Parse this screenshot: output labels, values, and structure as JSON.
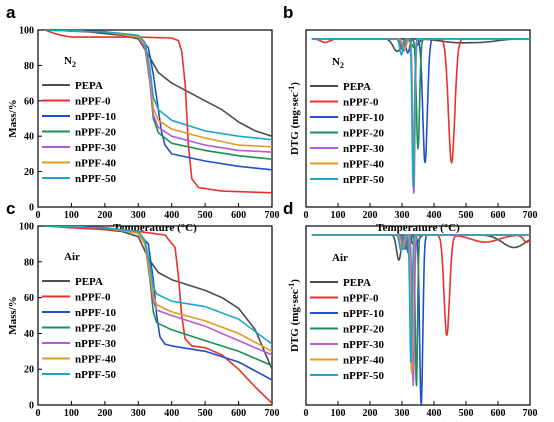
{
  "colors": {
    "PEPA": "#4d4d4d",
    "nPPF-0": "#e8312c",
    "nPPF-10": "#1f4fc9",
    "nPPF-20": "#1a8f4e",
    "nPPF-30": "#b65ad6",
    "nPPF-40": "#e09a1c",
    "nPPF-50": "#1ea6c6"
  },
  "chart_data": [
    {
      "panel": "a",
      "type": "line",
      "atmosphere_label": "N2",
      "xlabel": "Temperature (°C)",
      "ylabel": "Mass/%",
      "xlim": [
        0,
        700
      ],
      "ylim": [
        0,
        100
      ],
      "xticks": [
        0,
        100,
        200,
        300,
        400,
        500,
        600,
        700
      ],
      "yticks": [
        0,
        20,
        40,
        60,
        80,
        100
      ],
      "legend_position": "left-center",
      "series": [
        {
          "name": "PEPA",
          "x": [
            20,
            150,
            250,
            300,
            330,
            360,
            400,
            500,
            550,
            600,
            650,
            700
          ],
          "y": [
            100,
            99,
            97,
            95,
            86,
            76,
            70,
            60,
            55,
            48,
            43,
            40
          ]
        },
        {
          "name": "nPPF-0",
          "x": [
            20,
            50,
            70,
            100,
            200,
            300,
            400,
            420,
            430,
            440,
            450,
            460,
            480,
            550,
            700
          ],
          "y": [
            100,
            98,
            97,
            96,
            96,
            96,
            95.5,
            94,
            88,
            70,
            35,
            16,
            11,
            9,
            8
          ]
        },
        {
          "name": "nPPF-10",
          "x": [
            20,
            200,
            300,
            330,
            345,
            360,
            370,
            380,
            400,
            500,
            600,
            700
          ],
          "y": [
            100,
            99,
            96,
            90,
            75,
            55,
            42,
            35,
            30,
            26,
            23,
            21
          ]
        },
        {
          "name": "nPPF-20",
          "x": [
            20,
            200,
            300,
            320,
            335,
            345,
            360,
            400,
            500,
            600,
            700
          ],
          "y": [
            100,
            99,
            96,
            90,
            70,
            50,
            42,
            36,
            32,
            29,
            27
          ]
        },
        {
          "name": "nPPF-30",
          "x": [
            20,
            200,
            300,
            320,
            335,
            345,
            360,
            400,
            500,
            600,
            700
          ],
          "y": [
            100,
            99,
            96,
            90,
            70,
            52,
            45,
            40,
            35,
            32,
            31
          ]
        },
        {
          "name": "nPPF-40",
          "x": [
            20,
            200,
            300,
            320,
            335,
            345,
            360,
            400,
            500,
            600,
            700
          ],
          "y": [
            100,
            99,
            96,
            92,
            75,
            56,
            49,
            44,
            39,
            35,
            34
          ]
        },
        {
          "name": "nPPF-50",
          "x": [
            20,
            200,
            300,
            320,
            335,
            345,
            360,
            400,
            500,
            600,
            700
          ],
          "y": [
            100,
            99,
            97,
            93,
            78,
            62,
            55,
            49,
            43,
            40,
            38
          ]
        }
      ]
    },
    {
      "panel": "b",
      "type": "line",
      "atmosphere_label": "N2",
      "xlabel": "Temperature (°C)",
      "ylabel": "DTG (mg·sec-1)",
      "xlim": [
        0,
        700
      ],
      "xticks": [
        0,
        100,
        200,
        300,
        400,
        500,
        600,
        700
      ],
      "legend_position": "left-bottom",
      "baseline": 95,
      "series": [
        {
          "name": "PEPA",
          "peaks": [
            {
              "x": 285,
              "depth": 7,
              "width": 18
            },
            {
              "x": 340,
              "depth": 5,
              "width": 14
            },
            {
              "x": 470,
              "depth": 2,
              "width": 70
            },
            {
              "x": 560,
              "depth": 1.5,
              "width": 60
            }
          ]
        },
        {
          "name": "nPPF-0",
          "peaks": [
            {
              "x": 455,
              "depth": 70,
              "width": 14
            },
            {
              "x": 60,
              "depth": 2,
              "width": 20
            }
          ]
        },
        {
          "name": "nPPF-10",
          "peaks": [
            {
              "x": 372,
              "depth": 70,
              "width": 10
            },
            {
              "x": 318,
              "depth": 8,
              "width": 8
            }
          ]
        },
        {
          "name": "nPPF-20",
          "peaks": [
            {
              "x": 350,
              "depth": 62,
              "width": 7
            },
            {
              "x": 300,
              "depth": 6,
              "width": 8
            }
          ]
        },
        {
          "name": "nPPF-30",
          "peaks": [
            {
              "x": 337,
              "depth": 88,
              "width": 5
            },
            {
              "x": 305,
              "depth": 7,
              "width": 8
            }
          ]
        },
        {
          "name": "nPPF-40",
          "peaks": [
            {
              "x": 336,
              "depth": 80,
              "width": 5
            },
            {
              "x": 308,
              "depth": 6,
              "width": 8
            }
          ]
        },
        {
          "name": "nPPF-50",
          "peaks": [
            {
              "x": 335,
              "depth": 84,
              "width": 5
            },
            {
              "x": 298,
              "depth": 9,
              "width": 7
            }
          ]
        }
      ]
    },
    {
      "panel": "c",
      "type": "line",
      "atmosphere_label": "Air",
      "xlabel": "Temperature (°C)",
      "ylabel": "Mass/%",
      "xlim": [
        0,
        700
      ],
      "ylim": [
        0,
        100
      ],
      "xticks": [
        0,
        100,
        200,
        300,
        400,
        500,
        600,
        700
      ],
      "yticks": [
        0,
        20,
        40,
        60,
        80,
        100
      ],
      "legend_position": "left-center",
      "series": [
        {
          "name": "PEPA",
          "x": [
            20,
            150,
            250,
            300,
            330,
            360,
            400,
            500,
            550,
            600,
            650,
            700
          ],
          "y": [
            100,
            99,
            97,
            94,
            82,
            74,
            70,
            64,
            60,
            54,
            42,
            20
          ]
        },
        {
          "name": "nPPF-0",
          "x": [
            20,
            100,
            200,
            300,
            380,
            410,
            420,
            430,
            440,
            460,
            500,
            550,
            600,
            650,
            700
          ],
          "y": [
            100,
            99,
            98,
            97,
            95,
            88,
            72,
            50,
            37,
            33,
            32,
            28,
            20,
            10,
            1
          ]
        },
        {
          "name": "nPPF-10",
          "x": [
            20,
            200,
            300,
            330,
            345,
            355,
            365,
            380,
            400,
            500,
            600,
            700
          ],
          "y": [
            100,
            99,
            96,
            90,
            70,
            50,
            38,
            34,
            33,
            30,
            24,
            14
          ]
        },
        {
          "name": "nPPF-20",
          "x": [
            20,
            200,
            300,
            320,
            335,
            345,
            355,
            400,
            500,
            600,
            700
          ],
          "y": [
            100,
            99,
            96,
            90,
            70,
            52,
            46,
            42,
            36,
            30,
            22
          ]
        },
        {
          "name": "nPPF-30",
          "x": [
            20,
            200,
            300,
            320,
            335,
            345,
            355,
            400,
            500,
            600,
            700
          ],
          "y": [
            100,
            99,
            96,
            90,
            72,
            58,
            53,
            50,
            44,
            36,
            28
          ]
        },
        {
          "name": "nPPF-40",
          "x": [
            20,
            200,
            300,
            320,
            335,
            345,
            355,
            400,
            500,
            600,
            700
          ],
          "y": [
            100,
            99,
            96,
            90,
            73,
            61,
            56,
            52,
            47,
            40,
            30
          ]
        },
        {
          "name": "nPPF-50",
          "x": [
            20,
            200,
            300,
            320,
            335,
            345,
            355,
            400,
            500,
            600,
            700
          ],
          "y": [
            100,
            99,
            97,
            92,
            78,
            66,
            62,
            58,
            55,
            48,
            34
          ]
        }
      ]
    },
    {
      "panel": "d",
      "type": "line",
      "atmosphere_label": "Air",
      "xlabel": "Temperature (°C)",
      "ylabel": "DTG (mg·sec-1)",
      "xlim": [
        0,
        700
      ],
      "xticks": [
        0,
        100,
        200,
        300,
        400,
        500,
        600,
        700
      ],
      "legend_position": "left-bottom",
      "baseline": 95,
      "series": [
        {
          "name": "PEPA",
          "peaks": [
            {
              "x": 290,
              "depth": 14,
              "width": 10
            },
            {
              "x": 340,
              "depth": 6,
              "width": 14
            },
            {
              "x": 650,
              "depth": 7,
              "width": 50
            }
          ]
        },
        {
          "name": "nPPF-0",
          "peaks": [
            {
              "x": 440,
              "depth": 56,
              "width": 12
            },
            {
              "x": 560,
              "depth": 4,
              "width": 60
            },
            {
              "x": 690,
              "depth": 4,
              "width": 15
            }
          ]
        },
        {
          "name": "nPPF-10",
          "peaks": [
            {
              "x": 360,
              "depth": 95,
              "width": 7
            },
            {
              "x": 320,
              "depth": 10,
              "width": 7
            }
          ]
        },
        {
          "name": "nPPF-20",
          "peaks": [
            {
              "x": 345,
              "depth": 85,
              "width": 5
            },
            {
              "x": 310,
              "depth": 8,
              "width": 7
            }
          ]
        },
        {
          "name": "nPPF-30",
          "peaks": [
            {
              "x": 335,
              "depth": 84,
              "width": 5
            },
            {
              "x": 305,
              "depth": 8,
              "width": 7
            }
          ]
        },
        {
          "name": "nPPF-40",
          "peaks": [
            {
              "x": 330,
              "depth": 78,
              "width": 5
            },
            {
              "x": 300,
              "depth": 8,
              "width": 7
            }
          ]
        },
        {
          "name": "nPPF-50",
          "peaks": [
            {
              "x": 328,
              "depth": 72,
              "width": 5
            },
            {
              "x": 297,
              "depth": 9,
              "width": 7
            }
          ]
        }
      ]
    }
  ]
}
